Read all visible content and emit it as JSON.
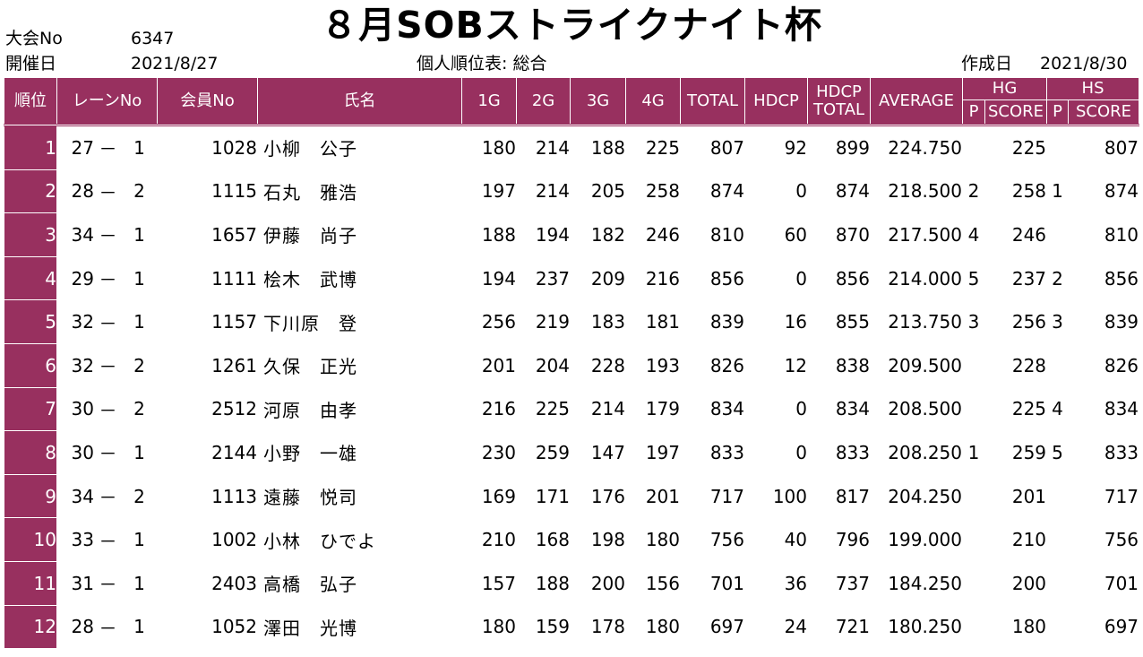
{
  "header": {
    "tournament_no_label": "大会No",
    "tournament_no": "6347",
    "date_label": "開催日",
    "date": "2021/8/27",
    "title": "８月SOBストライクナイト杯",
    "subtitle": "個人順位表: 総合",
    "created_label": "作成日",
    "created_date": "2021/8/30"
  },
  "columns": {
    "rank": "順位",
    "lane": "レーンNo",
    "member": "会員No",
    "name": "氏名",
    "g1": "1G",
    "g2": "2G",
    "g3": "3G",
    "g4": "4G",
    "total": "TOTAL",
    "hdcp": "HDCP",
    "hdcp_total_1": "HDCP",
    "hdcp_total_2": "TOTAL",
    "average": "AVERAGE",
    "hg": "HG",
    "hs": "HS",
    "p": "P",
    "score": "SCORE"
  },
  "rows": [
    {
      "rank": "1",
      "lane": "27",
      "dash": "－",
      "seat": "1",
      "member": "1028",
      "name": "小柳　公子",
      "g1": "180",
      "g2": "214",
      "g3": "188",
      "g4": "225",
      "total": "807",
      "hdcp": "92",
      "hdcp_total": "899",
      "average": "224.750",
      "hg_p": "",
      "hg_score": "225",
      "hs_p": "",
      "hs_score": "807"
    },
    {
      "rank": "2",
      "lane": "28",
      "dash": "－",
      "seat": "2",
      "member": "1115",
      "name": "石丸　雅浩",
      "g1": "197",
      "g2": "214",
      "g3": "205",
      "g4": "258",
      "total": "874",
      "hdcp": "0",
      "hdcp_total": "874",
      "average": "218.500",
      "hg_p": "2",
      "hg_score": "258",
      "hs_p": "1",
      "hs_score": "874"
    },
    {
      "rank": "3",
      "lane": "34",
      "dash": "－",
      "seat": "1",
      "member": "1657",
      "name": "伊藤　尚子",
      "g1": "188",
      "g2": "194",
      "g3": "182",
      "g4": "246",
      "total": "810",
      "hdcp": "60",
      "hdcp_total": "870",
      "average": "217.500",
      "hg_p": "4",
      "hg_score": "246",
      "hs_p": "",
      "hs_score": "810"
    },
    {
      "rank": "4",
      "lane": "29",
      "dash": "－",
      "seat": "1",
      "member": "1111",
      "name": "桧木　武博",
      "g1": "194",
      "g2": "237",
      "g3": "209",
      "g4": "216",
      "total": "856",
      "hdcp": "0",
      "hdcp_total": "856",
      "average": "214.000",
      "hg_p": "5",
      "hg_score": "237",
      "hs_p": "2",
      "hs_score": "856"
    },
    {
      "rank": "5",
      "lane": "32",
      "dash": "－",
      "seat": "1",
      "member": "1157",
      "name": "下川原　登",
      "g1": "256",
      "g2": "219",
      "g3": "183",
      "g4": "181",
      "total": "839",
      "hdcp": "16",
      "hdcp_total": "855",
      "average": "213.750",
      "hg_p": "3",
      "hg_score": "256",
      "hs_p": "3",
      "hs_score": "839"
    },
    {
      "rank": "6",
      "lane": "32",
      "dash": "－",
      "seat": "2",
      "member": "1261",
      "name": "久保　正光",
      "g1": "201",
      "g2": "204",
      "g3": "228",
      "g4": "193",
      "total": "826",
      "hdcp": "12",
      "hdcp_total": "838",
      "average": "209.500",
      "hg_p": "",
      "hg_score": "228",
      "hs_p": "",
      "hs_score": "826"
    },
    {
      "rank": "7",
      "lane": "30",
      "dash": "－",
      "seat": "2",
      "member": "2512",
      "name": "河原　由孝",
      "g1": "216",
      "g2": "225",
      "g3": "214",
      "g4": "179",
      "total": "834",
      "hdcp": "0",
      "hdcp_total": "834",
      "average": "208.500",
      "hg_p": "",
      "hg_score": "225",
      "hs_p": "4",
      "hs_score": "834"
    },
    {
      "rank": "8",
      "lane": "30",
      "dash": "－",
      "seat": "1",
      "member": "2144",
      "name": "小野　一雄",
      "g1": "230",
      "g2": "259",
      "g3": "147",
      "g4": "197",
      "total": "833",
      "hdcp": "0",
      "hdcp_total": "833",
      "average": "208.250",
      "hg_p": "1",
      "hg_score": "259",
      "hs_p": "5",
      "hs_score": "833"
    },
    {
      "rank": "9",
      "lane": "34",
      "dash": "－",
      "seat": "2",
      "member": "1113",
      "name": "遠藤　悦司",
      "g1": "169",
      "g2": "171",
      "g3": "176",
      "g4": "201",
      "total": "717",
      "hdcp": "100",
      "hdcp_total": "817",
      "average": "204.250",
      "hg_p": "",
      "hg_score": "201",
      "hs_p": "",
      "hs_score": "717"
    },
    {
      "rank": "10",
      "lane": "33",
      "dash": "－",
      "seat": "1",
      "member": "1002",
      "name": "小林　ひでよ",
      "g1": "210",
      "g2": "168",
      "g3": "198",
      "g4": "180",
      "total": "756",
      "hdcp": "40",
      "hdcp_total": "796",
      "average": "199.000",
      "hg_p": "",
      "hg_score": "210",
      "hs_p": "",
      "hs_score": "756"
    },
    {
      "rank": "11",
      "lane": "31",
      "dash": "－",
      "seat": "1",
      "member": "2403",
      "name": "高橋　弘子",
      "g1": "157",
      "g2": "188",
      "g3": "200",
      "g4": "156",
      "total": "701",
      "hdcp": "36",
      "hdcp_total": "737",
      "average": "184.250",
      "hg_p": "",
      "hg_score": "200",
      "hs_p": "",
      "hs_score": "701"
    },
    {
      "rank": "12",
      "lane": "28",
      "dash": "－",
      "seat": "1",
      "member": "1052",
      "name": "澤田　光博",
      "g1": "180",
      "g2": "159",
      "g3": "178",
      "g4": "180",
      "total": "697",
      "hdcp": "24",
      "hdcp_total": "721",
      "average": "180.250",
      "hg_p": "",
      "hg_score": "180",
      "hs_p": "",
      "hs_score": "697"
    }
  ],
  "colors": {
    "header_bg": "#98305f",
    "header_text": "#ffffff",
    "grid": "#bdbdbd"
  }
}
